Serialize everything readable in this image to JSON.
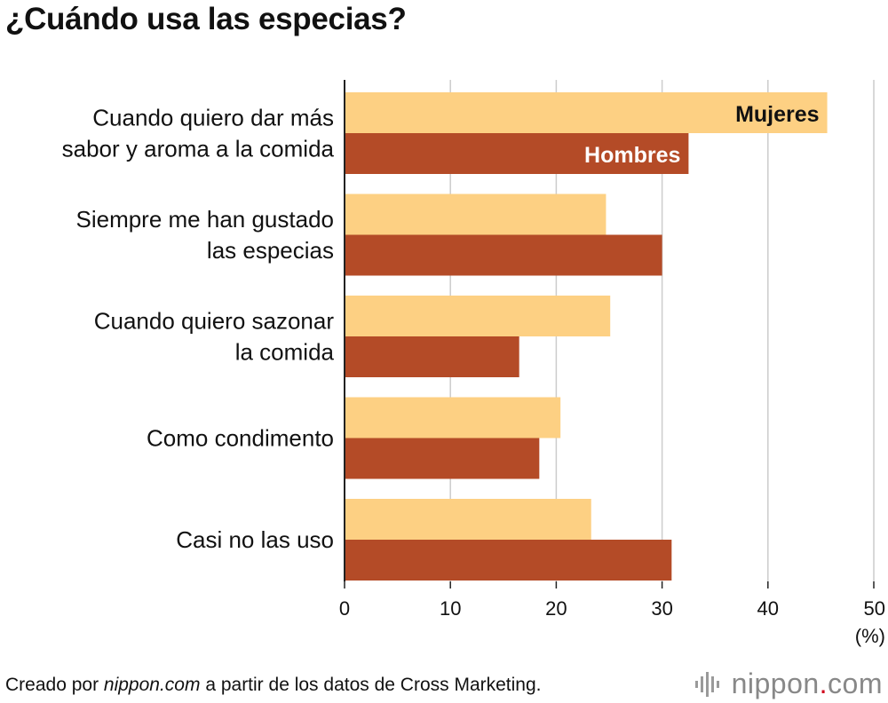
{
  "title": "¿Cuándo usa las especias?",
  "source": {
    "prefix": "Creado por ",
    "site": "nippon.com",
    "suffix": " a partir de los datos de Cross Marketing."
  },
  "brand": {
    "name": "nippon",
    "dot": ".",
    "tld": "com"
  },
  "colors": {
    "mujeres": "#fdd083",
    "hombres": "#b44b27",
    "grid": "#cccccc",
    "axis": "#222222"
  },
  "chart_data": {
    "type": "bar",
    "orientation": "horizontal",
    "categories": [
      [
        "Cuando quiero dar más",
        "sabor y aroma a la comida"
      ],
      [
        "Siempre me han gustado",
        "las especias"
      ],
      [
        "Cuando quiero sazonar",
        "la comida"
      ],
      [
        "Como condimento"
      ],
      [
        "Casi no las uso"
      ]
    ],
    "series": [
      {
        "name": "Mujeres",
        "values": [
          45.6,
          24.7,
          25.1,
          20.4,
          23.3
        ]
      },
      {
        "name": "Hombres",
        "values": [
          32.5,
          30.0,
          16.5,
          18.4,
          30.9
        ]
      }
    ],
    "xlim": [
      0,
      50
    ],
    "xticks": [
      "0",
      "10",
      "20",
      "30",
      "40",
      "50"
    ],
    "unit": "(%)",
    "grid": true
  }
}
